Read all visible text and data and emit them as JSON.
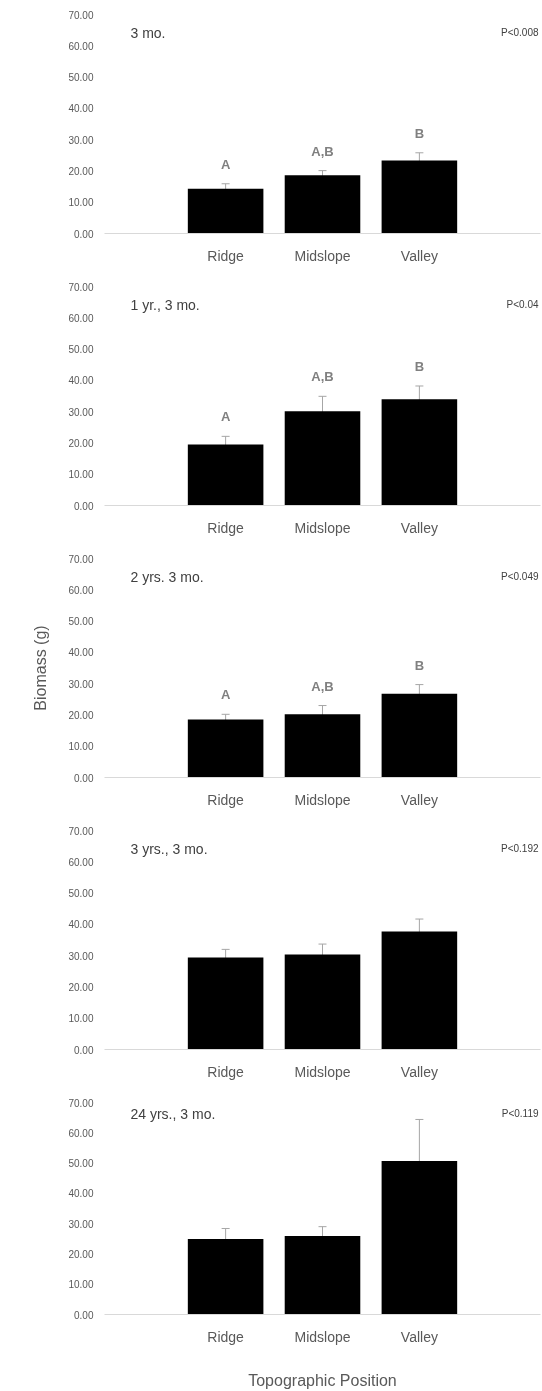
{
  "chart_data": [
    {
      "type": "bar",
      "title": "3 mo.",
      "categories": [
        "Ridge",
        "Midslope",
        "Valley"
      ],
      "values": [
        14.3,
        18.6,
        23.3
      ],
      "errors": [
        1.6,
        1.5,
        2.5
      ],
      "color": "#000000",
      "ylim": [
        0,
        70
      ],
      "yticks": [
        {
          "value": 0,
          "label": "0.00"
        },
        {
          "value": 10,
          "label": "10.00"
        },
        {
          "value": 20,
          "label": "20.00"
        },
        {
          "value": 30,
          "label": "30.00"
        },
        {
          "value": 40,
          "label": "40.00"
        },
        {
          "value": 50,
          "label": "50.00"
        },
        {
          "value": 60,
          "label": "60.00"
        },
        {
          "value": 70,
          "label": "70.00"
        }
      ],
      "grid": false,
      "annotations": [
        "P<0.008",
        "A",
        "A,B",
        "B"
      ]
    },
    {
      "type": "bar",
      "title": "1 yr., 3 mo.",
      "categories": [
        "Ridge",
        "Midslope",
        "Valley"
      ],
      "values": [
        19.5,
        30.1,
        34.0
      ],
      "errors": [
        2.6,
        4.8,
        4.2
      ],
      "color": "#000000",
      "ylim": [
        0,
        70
      ],
      "yticks": [
        {
          "value": 0,
          "label": "0.00"
        },
        {
          "value": 10,
          "label": "10.00"
        },
        {
          "value": 20,
          "label": "20.00"
        },
        {
          "value": 30,
          "label": "30.00"
        },
        {
          "value": 40,
          "label": "40.00"
        },
        {
          "value": 50,
          "label": "50.00"
        },
        {
          "value": 60,
          "label": "60.00"
        },
        {
          "value": 70,
          "label": "70.00"
        }
      ],
      "grid": false,
      "annotations": [
        "P<0.04",
        "A",
        "A,B",
        "B"
      ]
    },
    {
      "type": "bar",
      "title": "2 yrs. 3 mo.",
      "ylabel": "Biomass (g)",
      "categories": [
        "Ridge",
        "Midslope",
        "Valley"
      ],
      "values": [
        18.5,
        20.2,
        26.8
      ],
      "errors": [
        1.7,
        2.8,
        2.9
      ],
      "color": "#000000",
      "ylim": [
        0,
        70
      ],
      "yticks": [
        {
          "value": 0,
          "label": "0.00"
        },
        {
          "value": 10,
          "label": "10.00"
        },
        {
          "value": 20,
          "label": "20.00"
        },
        {
          "value": 30,
          "label": "30.00"
        },
        {
          "value": 40,
          "label": "40.00"
        },
        {
          "value": 50,
          "label": "50.00"
        },
        {
          "value": 60,
          "label": "60.00"
        },
        {
          "value": 70,
          "label": "70.00"
        }
      ],
      "grid": false,
      "annotations": [
        "P<0.049",
        "A",
        "A,B",
        "B"
      ]
    },
    {
      "type": "bar",
      "title": "3 yrs., 3 mo.",
      "categories": [
        "Ridge",
        "Midslope",
        "Valley"
      ],
      "values": [
        29.4,
        30.4,
        37.7
      ],
      "errors": [
        2.6,
        3.3,
        4.0
      ],
      "color": "#000000",
      "ylim": [
        0,
        70
      ],
      "yticks": [
        {
          "value": 0,
          "label": "0.00"
        },
        {
          "value": 10,
          "label": "10.00"
        },
        {
          "value": 20,
          "label": "20.00"
        },
        {
          "value": 30,
          "label": "30.00"
        },
        {
          "value": 40,
          "label": "40.00"
        },
        {
          "value": 50,
          "label": "50.00"
        },
        {
          "value": 60,
          "label": "60.00"
        },
        {
          "value": 70,
          "label": "70.00"
        }
      ],
      "grid": false,
      "annotations": [
        "P<0.192"
      ]
    },
    {
      "type": "bar",
      "title": "24 yrs., 3 mo.",
      "xlabel": "Topographic Position",
      "categories": [
        "Ridge",
        "Midslope",
        "Valley"
      ],
      "values": [
        24.9,
        25.9,
        50.7
      ],
      "errors": [
        3.5,
        3.1,
        13.7
      ],
      "color": "#000000",
      "ylim": [
        0,
        70
      ],
      "yticks": [
        {
          "value": 0,
          "label": "0.00"
        },
        {
          "value": 10,
          "label": "10.00"
        },
        {
          "value": 20,
          "label": "20.00"
        },
        {
          "value": 30,
          "label": "30.00"
        },
        {
          "value": 40,
          "label": "40.00"
        },
        {
          "value": 50,
          "label": "50.00"
        },
        {
          "value": 60,
          "label": "60.00"
        },
        {
          "value": 70,
          "label": "70.00"
        }
      ],
      "grid": false,
      "annotations": [
        "P<0.119"
      ]
    }
  ]
}
